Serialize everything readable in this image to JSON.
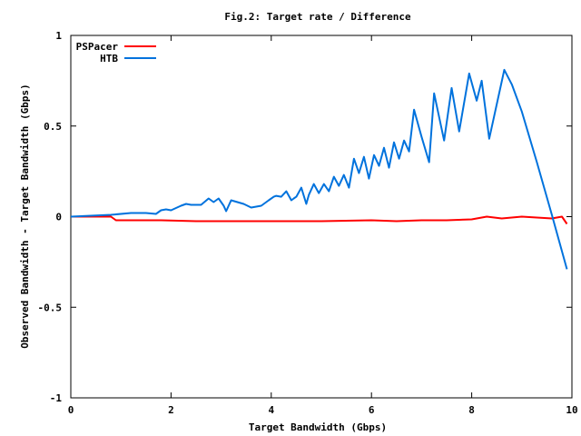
{
  "chart_data": {
    "type": "line",
    "title": "Fig.2: Target rate / Difference",
    "xlabel": "Target Bandwidth (Gbps)",
    "ylabel": "Observed Bandwidth - Target Bandwidth (Gbps)",
    "xlim": [
      0,
      10
    ],
    "ylim": [
      -1,
      1
    ],
    "xticks": [
      0,
      2,
      4,
      6,
      8,
      10
    ],
    "xtick_labels": [
      "0",
      "2",
      "4",
      "6",
      "8",
      "10"
    ],
    "yticks": [
      -1,
      -0.5,
      0,
      0.5,
      1
    ],
    "ytick_labels": [
      "-1",
      "-0.5",
      "0",
      "0.5",
      "1"
    ],
    "grid": false,
    "legend_position": "top-left",
    "series": [
      {
        "name": "PSPacer",
        "color": "#ff0000",
        "x": [
          0,
          0.8,
          0.9,
          1.7,
          1.8,
          2.5,
          3,
          4,
          5,
          6,
          6.5,
          7,
          7.5,
          8,
          8.3,
          8.6,
          9,
          9.3,
          9.6,
          9.8,
          9.9
        ],
        "y": [
          0,
          0,
          -0.02,
          -0.02,
          -0.02,
          -0.025,
          -0.025,
          -0.025,
          -0.025,
          -0.02,
          -0.025,
          -0.02,
          -0.02,
          -0.015,
          0,
          -0.01,
          0,
          -0.005,
          -0.01,
          0,
          -0.04
        ]
      },
      {
        "name": "HTB",
        "color": "#0072dd",
        "x": [
          0,
          0.4,
          0.8,
          1.2,
          1.5,
          1.7,
          1.8,
          1.9,
          2,
          2.2,
          2.3,
          2.4,
          2.6,
          2.75,
          2.85,
          2.95,
          3.05,
          3.1,
          3.2,
          3.45,
          3.6,
          3.8,
          3.95,
          4.05,
          4.1,
          4.2,
          4.3,
          4.4,
          4.45,
          4.5,
          4.6,
          4.7,
          4.75,
          4.85,
          4.95,
          5.05,
          5.15,
          5.25,
          5.35,
          5.45,
          5.55,
          5.65,
          5.75,
          5.85,
          5.95,
          6.05,
          6.15,
          6.25,
          6.35,
          6.45,
          6.55,
          6.65,
          6.75,
          6.85,
          7.0,
          7.15,
          7.25,
          7.45,
          7.6,
          7.75,
          7.95,
          8.1,
          8.2,
          8.35,
          8.65,
          8.8,
          9.0,
          9.3,
          9.6,
          9.9
        ],
        "y": [
          0,
          0.005,
          0.01,
          0.02,
          0.02,
          0.015,
          0.035,
          0.04,
          0.035,
          0.06,
          0.07,
          0.065,
          0.065,
          0.1,
          0.08,
          0.1,
          0.06,
          0.03,
          0.09,
          0.07,
          0.05,
          0.06,
          0.09,
          0.11,
          0.115,
          0.11,
          0.14,
          0.09,
          0.1,
          0.11,
          0.16,
          0.07,
          0.12,
          0.18,
          0.13,
          0.18,
          0.14,
          0.22,
          0.17,
          0.23,
          0.16,
          0.32,
          0.24,
          0.33,
          0.21,
          0.34,
          0.28,
          0.38,
          0.27,
          0.41,
          0.32,
          0.42,
          0.36,
          0.59,
          0.44,
          0.3,
          0.68,
          0.42,
          0.71,
          0.47,
          0.79,
          0.64,
          0.75,
          0.43,
          0.81,
          0.73,
          0.58,
          0.3,
          0.01,
          -0.29
        ]
      }
    ]
  }
}
